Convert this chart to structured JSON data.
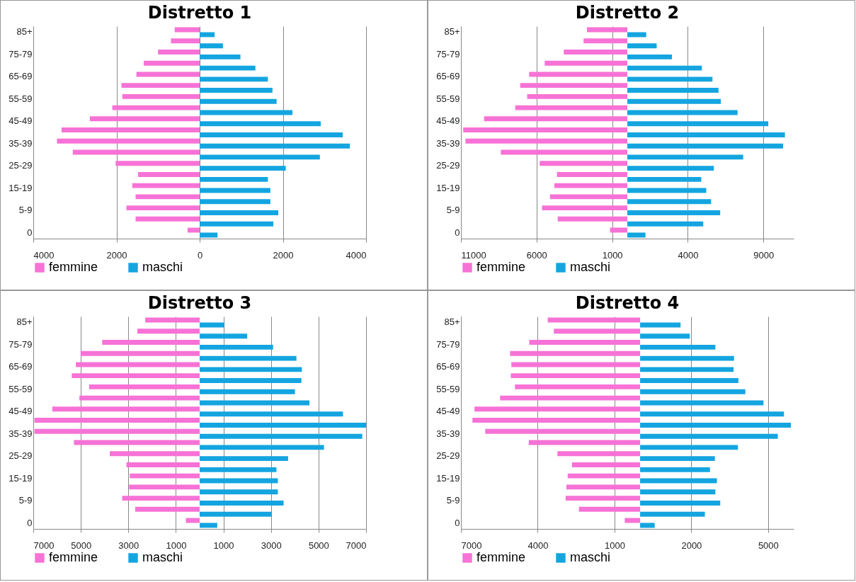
{
  "chart_data": [
    {
      "type": "bar",
      "orientation": "horizontal",
      "title": "Distretto 1",
      "categories": [
        "85+",
        null,
        "75-79",
        null,
        "65-69",
        null,
        "55-59",
        null,
        "45-49",
        null,
        "35-39",
        null,
        "25-29",
        null,
        "15-19",
        null,
        "5-9",
        null,
        "0"
      ],
      "series": [
        {
          "name": "femmine",
          "color": "#f772d6",
          "values": [
            -600,
            -690,
            -1000,
            -1345,
            -1520,
            -1880,
            -1860,
            -2100,
            -2640,
            -3320,
            -3430,
            -3050,
            -2020,
            -1480,
            -1620,
            -1540,
            -1760,
            -1540,
            -290
          ]
        },
        {
          "name": "maschi",
          "color": "#14a5e0",
          "values": [
            360,
            560,
            980,
            1340,
            1640,
            1750,
            1850,
            2230,
            2910,
            3440,
            3610,
            2890,
            2070,
            1640,
            1700,
            1700,
            1890,
            1770,
            430
          ]
        }
      ],
      "xlim": [
        -4000,
        4000
      ],
      "xticks": [
        {
          "value": -4000,
          "label": "4000"
        },
        {
          "value": -2000,
          "label": "2000"
        },
        0,
        2000,
        4000
      ],
      "grid": "x",
      "legend": "bottom"
    },
    {
      "type": "bar",
      "orientation": "horizontal",
      "title": "Distretto 2",
      "categories": [
        "85+",
        null,
        "75-79",
        null,
        "65-69",
        null,
        "55-59",
        null,
        "45-49",
        null,
        "35-39",
        null,
        "25-29",
        null,
        "15-19",
        null,
        "5-9",
        null,
        "0"
      ],
      "series": [
        {
          "name": "femmine",
          "color": "#f772d6",
          "values": [
            -2670,
            -2890,
            -4200,
            -5460,
            -6490,
            -7080,
            -6620,
            -7410,
            -9470,
            -10850,
            -10700,
            -8360,
            -5790,
            -4650,
            -4820,
            -5110,
            -5640,
            -4600,
            -1140
          ]
        },
        {
          "name": "maschi",
          "color": "#14a5e0",
          "values": [
            1250,
            1940,
            2950,
            4930,
            5630,
            6030,
            6180,
            7290,
            9320,
            10420,
            10300,
            7660,
            5720,
            4890,
            5220,
            5540,
            6140,
            5020,
            1200
          ]
        }
      ],
      "xlim": [
        -11000,
        11000
      ],
      "xticks": [
        {
          "value": -11000,
          "label": "11000"
        },
        {
          "value": -6000,
          "label": "6000"
        },
        {
          "value": -1000,
          "label": "1000"
        },
        4000,
        9000
      ],
      "grid": "x",
      "legend": "bottom"
    },
    {
      "type": "bar",
      "orientation": "horizontal",
      "title": "Distretto 3",
      "categories": [
        "85+",
        null,
        "75-79",
        null,
        "65-69",
        null,
        "55-59",
        null,
        "45-49",
        null,
        "35-39",
        null,
        "25-29",
        null,
        "15-19",
        null,
        "5-9",
        null,
        "0"
      ],
      "series": [
        {
          "name": "femmine",
          "color": "#f772d6",
          "values": [
            -2290,
            -2620,
            -4100,
            -5010,
            -5210,
            -5380,
            -4650,
            -5060,
            -6200,
            -6950,
            -6950,
            -5290,
            -3780,
            -3080,
            -2940,
            -2970,
            -3260,
            -2710,
            -580
          ]
        },
        {
          "name": "maschi",
          "color": "#14a5e0",
          "values": [
            1040,
            2000,
            3090,
            4070,
            4300,
            4280,
            4010,
            4620,
            6030,
            7000,
            6840,
            5230,
            3720,
            3230,
            3290,
            3290,
            3530,
            3030,
            740
          ]
        }
      ],
      "xlim": [
        -7000,
        7000
      ],
      "xticks": [
        {
          "value": -7000,
          "label": "7000"
        },
        {
          "value": -5000,
          "label": "5000"
        },
        {
          "value": -3000,
          "label": "3000"
        },
        {
          "value": -1000,
          "label": "1000"
        },
        1000,
        3000,
        5000,
        7000
      ],
      "grid": "x",
      "legend": "bottom"
    },
    {
      "type": "bar",
      "orientation": "horizontal",
      "title": "Distretto 4",
      "categories": [
        "85+",
        null,
        "75-79",
        null,
        "65-69",
        null,
        "55-59",
        null,
        "45-49",
        null,
        "35-39",
        null,
        "25-29",
        null,
        "15-19",
        null,
        "5-9",
        null,
        "0"
      ],
      "series": [
        {
          "name": "femmine",
          "color": "#f772d6",
          "values": [
            -3610,
            -3370,
            -4330,
            -5080,
            -5030,
            -5050,
            -4890,
            -5470,
            -6470,
            -6550,
            -6050,
            -4350,
            -3230,
            -2660,
            -2830,
            -2880,
            -2910,
            -2390,
            -600
          ]
        },
        {
          "name": "maschi",
          "color": "#14a5e0",
          "values": [
            1580,
            1940,
            2940,
            3670,
            3650,
            3840,
            4110,
            4820,
            5620,
            5890,
            5380,
            3820,
            2920,
            2730,
            3000,
            2940,
            3130,
            2530,
            570
          ]
        }
      ],
      "xlim": [
        -7000,
        6000
      ],
      "xticks": [
        {
          "value": -7000,
          "label": "7000"
        },
        {
          "value": -4000,
          "label": "4000"
        },
        {
          "value": -1000,
          "label": "1000"
        },
        2000,
        5000
      ],
      "grid": "x",
      "legend": "bottom"
    }
  ]
}
